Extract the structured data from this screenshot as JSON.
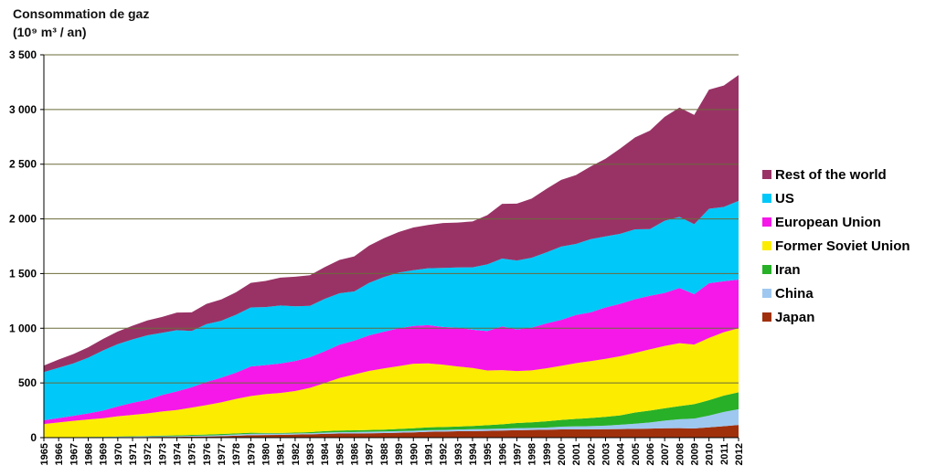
{
  "chart_data": {
    "type": "area",
    "title": "Consommation de gaz",
    "subtitle": "(10⁹ m³ / an)",
    "xlabel": "",
    "ylabel": "",
    "ylim": [
      0,
      3500
    ],
    "yticks": [
      0,
      500,
      1000,
      1500,
      2000,
      2500,
      3000,
      3500
    ],
    "ytick_labels": [
      "0",
      "500",
      "1 000",
      "1 500",
      "2 000",
      "2 500",
      "3 000",
      "3 500"
    ],
    "grid": true,
    "stacked": true,
    "legend_position": "right",
    "x": [
      1965,
      1966,
      1967,
      1968,
      1969,
      1970,
      1971,
      1972,
      1973,
      1974,
      1975,
      1976,
      1977,
      1978,
      1979,
      1980,
      1981,
      1982,
      1983,
      1984,
      1985,
      1986,
      1987,
      1988,
      1989,
      1990,
      1991,
      1992,
      1993,
      1994,
      1995,
      1996,
      1997,
      1998,
      1999,
      2000,
      2001,
      2002,
      2003,
      2004,
      2005,
      2006,
      2007,
      2008,
      2009,
      2010,
      2011,
      2012
    ],
    "series": [
      {
        "name": "Japan",
        "color": "#a0300c",
        "values": [
          2,
          2,
          2,
          2,
          3,
          4,
          5,
          6,
          7,
          7,
          9,
          10,
          13,
          18,
          22,
          24,
          25,
          28,
          30,
          34,
          38,
          38,
          40,
          42,
          45,
          48,
          53,
          55,
          58,
          60,
          62,
          65,
          68,
          70,
          72,
          75,
          76,
          76,
          77,
          78,
          80,
          82,
          86,
          87,
          84,
          94,
          104,
          116
        ]
      },
      {
        "name": "China",
        "color": "#9ec8f0",
        "values": [
          1,
          1,
          1,
          2,
          2,
          3,
          4,
          5,
          6,
          7,
          8,
          9,
          10,
          11,
          12,
          13,
          12,
          11,
          11,
          12,
          12,
          13,
          14,
          14,
          15,
          15,
          15,
          15,
          16,
          17,
          17,
          18,
          19,
          19,
          20,
          25,
          27,
          29,
          33,
          40,
          47,
          57,
          70,
          81,
          90,
          107,
          131,
          144
        ]
      },
      {
        "name": "Iran",
        "color": "#28b028",
        "values": [
          1,
          1,
          1,
          2,
          2,
          3,
          4,
          5,
          6,
          7,
          8,
          9,
          10,
          10,
          11,
          6,
          6,
          7,
          9,
          13,
          15,
          16,
          16,
          17,
          19,
          23,
          26,
          27,
          27,
          30,
          35,
          39,
          47,
          51,
          57,
          62,
          68,
          75,
          80,
          86,
          103,
          108,
          112,
          120,
          132,
          141,
          149,
          155
        ]
      },
      {
        "name": "Former Soviet Union",
        "color": "#fbec00",
        "values": [
          120,
          135,
          150,
          160,
          170,
          185,
          195,
          205,
          220,
          232,
          250,
          270,
          290,
          315,
          335,
          355,
          365,
          380,
          405,
          440,
          480,
          510,
          540,
          560,
          575,
          590,
          585,
          570,
          550,
          530,
          500,
          495,
          475,
          475,
          485,
          495,
          510,
          520,
          530,
          540,
          545,
          560,
          570,
          575,
          545,
          570,
          580,
          585
        ]
      },
      {
        "name": "European Union",
        "color": "#f518e8",
        "values": [
          35,
          40,
          45,
          55,
          70,
          90,
          110,
          125,
          150,
          170,
          185,
          210,
          225,
          240,
          270,
          265,
          270,
          275,
          280,
          290,
          305,
          310,
          325,
          335,
          345,
          345,
          350,
          345,
          355,
          350,
          360,
          400,
          380,
          390,
          410,
          420,
          440,
          445,
          470,
          480,
          490,
          490,
          485,
          505,
          460,
          500,
          465,
          445
        ]
      },
      {
        "name": "US",
        "color": "#00c8f8",
        "values": [
          440,
          460,
          480,
          510,
          550,
          570,
          580,
          590,
          570,
          560,
          515,
          530,
          520,
          530,
          540,
          530,
          530,
          500,
          470,
          480,
          470,
          450,
          480,
          500,
          510,
          510,
          520,
          540,
          550,
          570,
          610,
          620,
          630,
          640,
          650,
          670,
          650,
          670,
          650,
          640,
          640,
          610,
          660,
          650,
          640,
          680,
          680,
          720
        ]
      },
      {
        "name": "Rest of the world",
        "color": "#993366",
        "values": [
          60,
          75,
          85,
          95,
          105,
          115,
          125,
          135,
          145,
          160,
          170,
          185,
          195,
          205,
          225,
          240,
          255,
          270,
          280,
          290,
          305,
          320,
          340,
          355,
          370,
          390,
          395,
          410,
          410,
          420,
          450,
          500,
          520,
          540,
          580,
          610,
          630,
          665,
          710,
          780,
          840,
          900,
          950,
          1000,
          1000,
          1090,
          1110,
          1150
        ]
      }
    ]
  }
}
